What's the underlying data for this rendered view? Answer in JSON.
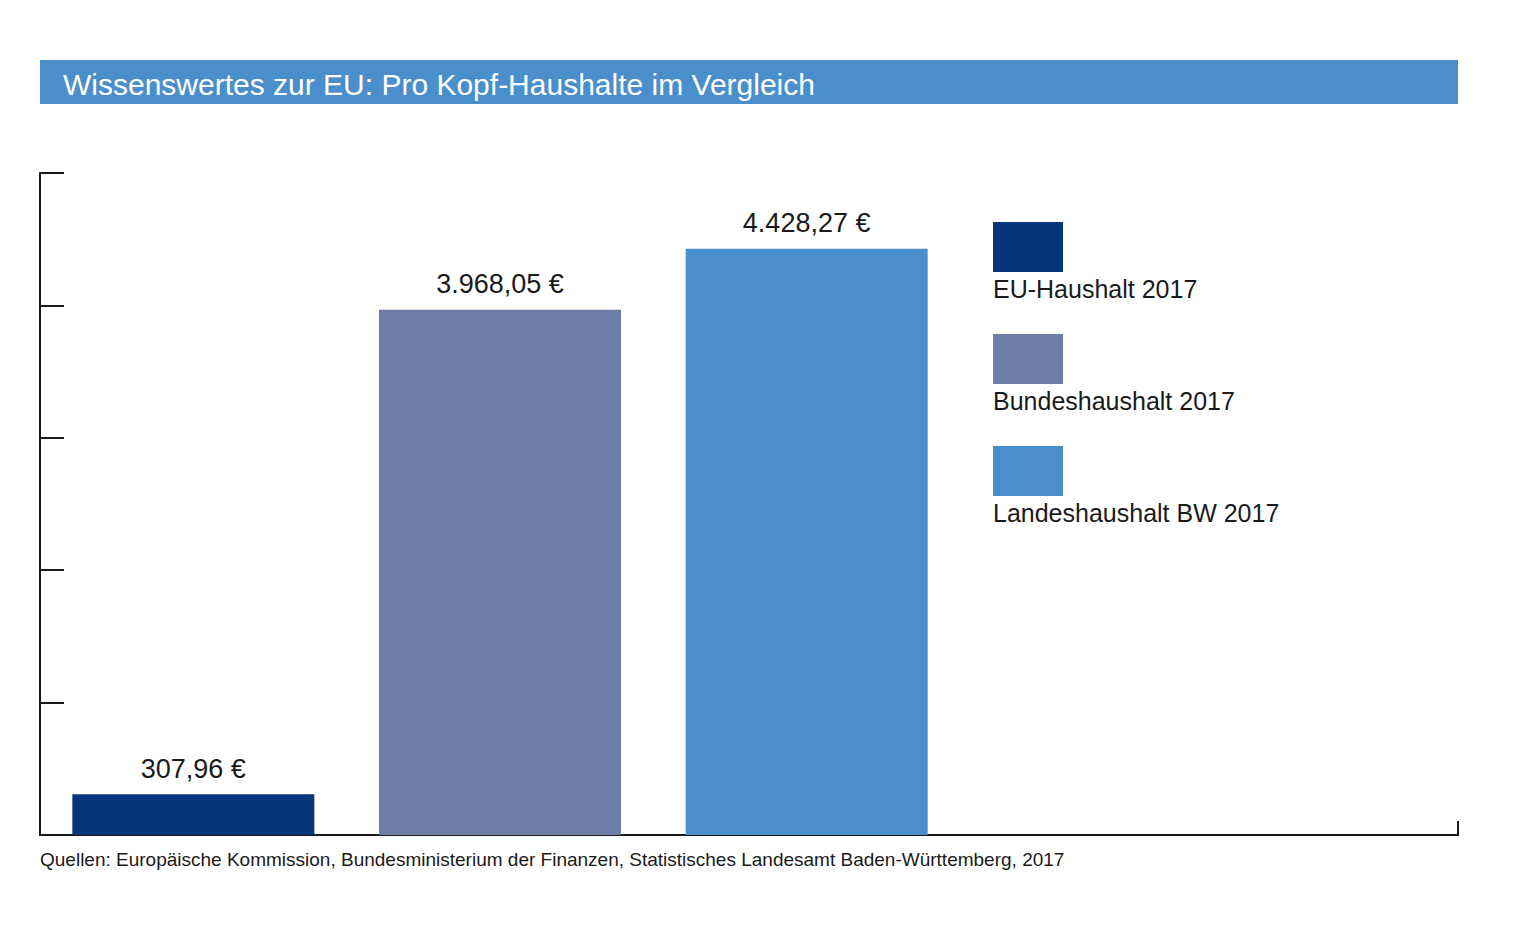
{
  "chart_data": {
    "type": "bar",
    "title": "Wissenswertes zur EU: Pro Kopf-Haushalte im Vergleich",
    "source": "Quellen: Europäische Kommission, Bundesministerium der Finanzen, Statistisches Landesamt Baden-Württemberg, 2017",
    "categories": [
      "EU-Haushalt 2017",
      "Bundeshaushalt 2017",
      "Landeshaushalt BW 2017"
    ],
    "values": [
      307.96,
      3968.05,
      4428.27
    ],
    "value_labels": [
      "307,96 €",
      "3.968,05 €",
      "4.428,27 €"
    ],
    "colors": [
      "#05357a",
      "#6e7ea9",
      "#4a8fcc"
    ],
    "ylim": [
      0,
      5000
    ],
    "yticks": [
      0,
      1000,
      2000,
      3000,
      4000,
      5000
    ],
    "grid": false,
    "legend": "right",
    "data_labels": true,
    "tick_labels": false
  }
}
